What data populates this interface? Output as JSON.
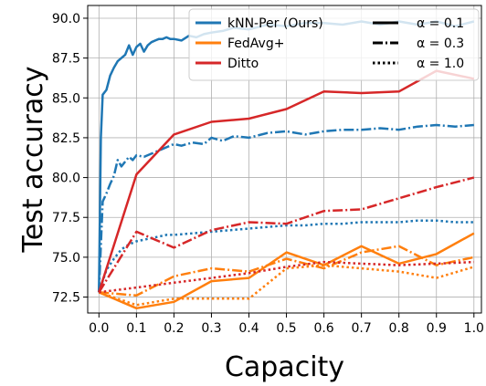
{
  "chart_data": {
    "type": "line",
    "title": "",
    "xlabel": "Capacity",
    "ylabel": "Test accuracy",
    "xlim": [
      -0.03,
      1.02
    ],
    "ylim": [
      71.5,
      90.8
    ],
    "xticks": [
      "0.0",
      "0.1",
      "0.2",
      "0.3",
      "0.4",
      "0.5",
      "0.6",
      "0.7",
      "0.8",
      "0.9",
      "1.0"
    ],
    "yticks": [
      "72.5",
      "75.0",
      "77.5",
      "80.0",
      "82.5",
      "85.0",
      "87.5",
      "90.0"
    ],
    "grid": true,
    "legend_position": "top-right",
    "legend_methods": [
      {
        "name": "kNN-Per (Ours)",
        "color": "#1f77b4"
      },
      {
        "name": "FedAvg+",
        "color": "#ff7f0e"
      },
      {
        "name": "Ditto",
        "color": "#d62728"
      }
    ],
    "legend_alphas": [
      {
        "label": "α = 0.1",
        "style": "solid"
      },
      {
        "label": "α = 0.3",
        "style": "dashdot"
      },
      {
        "label": "α = 1.0",
        "style": "dotted"
      }
    ],
    "series": [
      {
        "method": "kNN-Per (Ours)",
        "alpha": "0.1",
        "color": "#1f77b4",
        "style": "solid",
        "x": [
          0.0,
          0.005,
          0.01,
          0.02,
          0.03,
          0.04,
          0.05,
          0.06,
          0.07,
          0.08,
          0.09,
          0.1,
          0.11,
          0.12,
          0.13,
          0.14,
          0.15,
          0.16,
          0.17,
          0.18,
          0.19,
          0.2,
          0.22,
          0.24,
          0.26,
          0.28,
          0.3,
          0.33,
          0.36,
          0.4,
          0.45,
          0.5,
          0.55,
          0.6,
          0.65,
          0.7,
          0.75,
          0.8,
          0.85,
          0.9,
          0.95,
          1.0
        ],
        "y": [
          72.8,
          82.5,
          85.2,
          85.5,
          86.4,
          86.9,
          87.3,
          87.5,
          87.7,
          88.3,
          87.7,
          88.2,
          88.4,
          87.9,
          88.3,
          88.5,
          88.6,
          88.7,
          88.7,
          88.8,
          88.7,
          88.7,
          88.6,
          88.9,
          88.8,
          89.0,
          89.1,
          89.2,
          89.4,
          89.3,
          89.6,
          89.5,
          89.7,
          89.7,
          89.6,
          89.8,
          89.6,
          89.8,
          89.6,
          89.8,
          89.5,
          89.8
        ]
      },
      {
        "method": "kNN-Per (Ours)",
        "alpha": "0.3",
        "color": "#1f77b4",
        "style": "dashdot",
        "x": [
          0.0,
          0.01,
          0.02,
          0.03,
          0.04,
          0.05,
          0.06,
          0.07,
          0.08,
          0.09,
          0.1,
          0.12,
          0.14,
          0.16,
          0.18,
          0.2,
          0.22,
          0.25,
          0.28,
          0.3,
          0.33,
          0.36,
          0.4,
          0.45,
          0.5,
          0.55,
          0.6,
          0.65,
          0.7,
          0.75,
          0.8,
          0.85,
          0.9,
          0.95,
          1.0
        ],
        "y": [
          72.8,
          78.5,
          79.0,
          79.6,
          80.1,
          81.1,
          80.7,
          81.0,
          81.3,
          81.1,
          81.4,
          81.3,
          81.5,
          81.7,
          81.9,
          82.1,
          82.0,
          82.2,
          82.1,
          82.5,
          82.3,
          82.6,
          82.5,
          82.8,
          82.9,
          82.7,
          82.9,
          83.0,
          83.0,
          83.1,
          83.0,
          83.2,
          83.3,
          83.2,
          83.3
        ]
      },
      {
        "method": "kNN-Per (Ours)",
        "alpha": "1.0",
        "color": "#1f77b4",
        "style": "dotted",
        "x": [
          0.0,
          0.02,
          0.04,
          0.06,
          0.08,
          0.1,
          0.12,
          0.14,
          0.16,
          0.18,
          0.2,
          0.25,
          0.3,
          0.35,
          0.4,
          0.45,
          0.5,
          0.55,
          0.6,
          0.65,
          0.7,
          0.75,
          0.8,
          0.85,
          0.9,
          0.95,
          1.0
        ],
        "y": [
          72.8,
          74.2,
          74.9,
          75.5,
          75.8,
          76.0,
          76.1,
          76.2,
          76.3,
          76.4,
          76.4,
          76.5,
          76.6,
          76.7,
          76.8,
          76.9,
          77.0,
          77.0,
          77.1,
          77.1,
          77.2,
          77.2,
          77.2,
          77.3,
          77.3,
          77.2,
          77.2
        ]
      },
      {
        "method": "FedAvg+",
        "alpha": "0.1",
        "color": "#ff7f0e",
        "style": "solid",
        "x": [
          0.0,
          0.1,
          0.2,
          0.3,
          0.4,
          0.5,
          0.6,
          0.7,
          0.8,
          0.9,
          1.0
        ],
        "y": [
          72.8,
          71.8,
          72.2,
          73.5,
          73.7,
          75.3,
          74.5,
          75.7,
          74.6,
          75.2,
          76.5
        ]
      },
      {
        "method": "FedAvg+",
        "alpha": "0.3",
        "color": "#ff7f0e",
        "style": "dashdot",
        "x": [
          0.0,
          0.1,
          0.2,
          0.3,
          0.4,
          0.5,
          0.6,
          0.7,
          0.8,
          0.9,
          1.0
        ],
        "y": [
          72.8,
          72.6,
          73.8,
          74.3,
          74.1,
          74.9,
          74.3,
          75.3,
          75.7,
          74.5,
          75.0
        ]
      },
      {
        "method": "FedAvg+",
        "alpha": "1.0",
        "color": "#ff7f0e",
        "style": "dotted",
        "x": [
          0.0,
          0.1,
          0.2,
          0.3,
          0.4,
          0.5,
          0.6,
          0.7,
          0.8,
          0.9,
          1.0
        ],
        "y": [
          72.8,
          72.0,
          72.4,
          72.4,
          72.4,
          74.3,
          74.5,
          74.3,
          74.1,
          73.7,
          74.4
        ]
      },
      {
        "method": "Ditto",
        "alpha": "0.1",
        "color": "#d62728",
        "style": "solid",
        "x": [
          0.0,
          0.1,
          0.2,
          0.3,
          0.4,
          0.5,
          0.6,
          0.7,
          0.8,
          0.9,
          1.0
        ],
        "y": [
          72.8,
          80.2,
          82.7,
          83.5,
          83.7,
          84.3,
          85.4,
          85.3,
          85.4,
          86.7,
          86.2
        ]
      },
      {
        "method": "Ditto",
        "alpha": "0.3",
        "color": "#d62728",
        "style": "dashdot",
        "x": [
          0.0,
          0.1,
          0.2,
          0.3,
          0.4,
          0.5,
          0.6,
          0.7,
          0.8,
          0.9,
          1.0
        ],
        "y": [
          72.8,
          76.6,
          75.6,
          76.7,
          77.2,
          77.1,
          77.9,
          78.0,
          78.7,
          79.4,
          80.0
        ]
      },
      {
        "method": "Ditto",
        "alpha": "1.0",
        "color": "#d62728",
        "style": "dotted",
        "x": [
          0.0,
          0.1,
          0.2,
          0.3,
          0.4,
          0.5,
          0.6,
          0.7,
          0.8,
          0.9,
          1.0
        ],
        "y": [
          72.8,
          73.1,
          73.4,
          73.7,
          74.0,
          74.4,
          74.7,
          74.6,
          74.5,
          74.6,
          74.7
        ]
      }
    ]
  }
}
